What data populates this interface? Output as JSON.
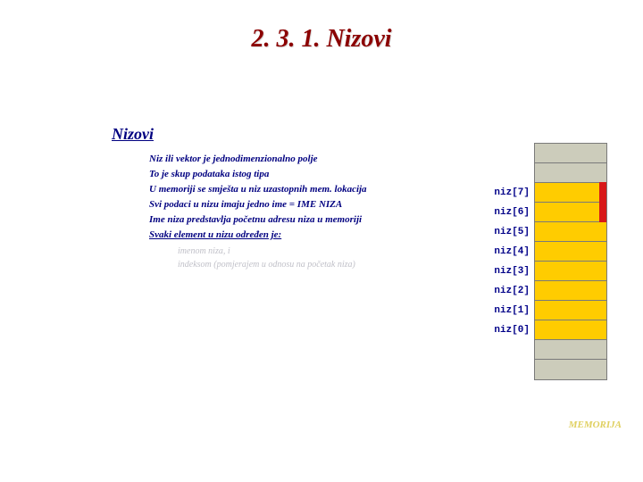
{
  "title": "2. 3. 1. Nizovi",
  "subtitle": "Nizovi",
  "bullets": [
    {
      "text": "Niz ili vektor je jednodimenzionalno polje"
    },
    {
      "text": "To je skup podataka istog tipa"
    },
    {
      "text": "U memoriji se smješta u niz uzastopnih mem. lokacija"
    },
    {
      "text": "Svi podaci u nizu imaju jedno ime = IME NIZA"
    },
    {
      "text": "Ime niza predstavlja početnu adresu niza u memoriji"
    },
    {
      "text": "Svaki element u nizu određen je:",
      "underline": true
    }
  ],
  "sub_bullets": [
    "imenom niza, i",
    "indeksom (pomjerajem u odnosu na početak niza)"
  ],
  "memory": {
    "caption": "MEMORIJA",
    "rows": [
      {
        "label": "",
        "filled": false,
        "redbar": false
      },
      {
        "label": "",
        "filled": false,
        "redbar": false
      },
      {
        "label": "niz[7]",
        "filled": true,
        "redbar": true
      },
      {
        "label": "niz[6]",
        "filled": true,
        "redbar": true
      },
      {
        "label": "niz[5]",
        "filled": true,
        "redbar": false
      },
      {
        "label": "niz[4]",
        "filled": true,
        "redbar": false
      },
      {
        "label": "niz[3]",
        "filled": true,
        "redbar": false
      },
      {
        "label": "niz[2]",
        "filled": true,
        "redbar": false
      },
      {
        "label": "niz[1]",
        "filled": true,
        "redbar": false
      },
      {
        "label": "niz[0]",
        "filled": true,
        "redbar": false
      },
      {
        "label": "",
        "filled": false,
        "redbar": false
      },
      {
        "label": "",
        "filled": false,
        "redbar": false
      }
    ]
  }
}
